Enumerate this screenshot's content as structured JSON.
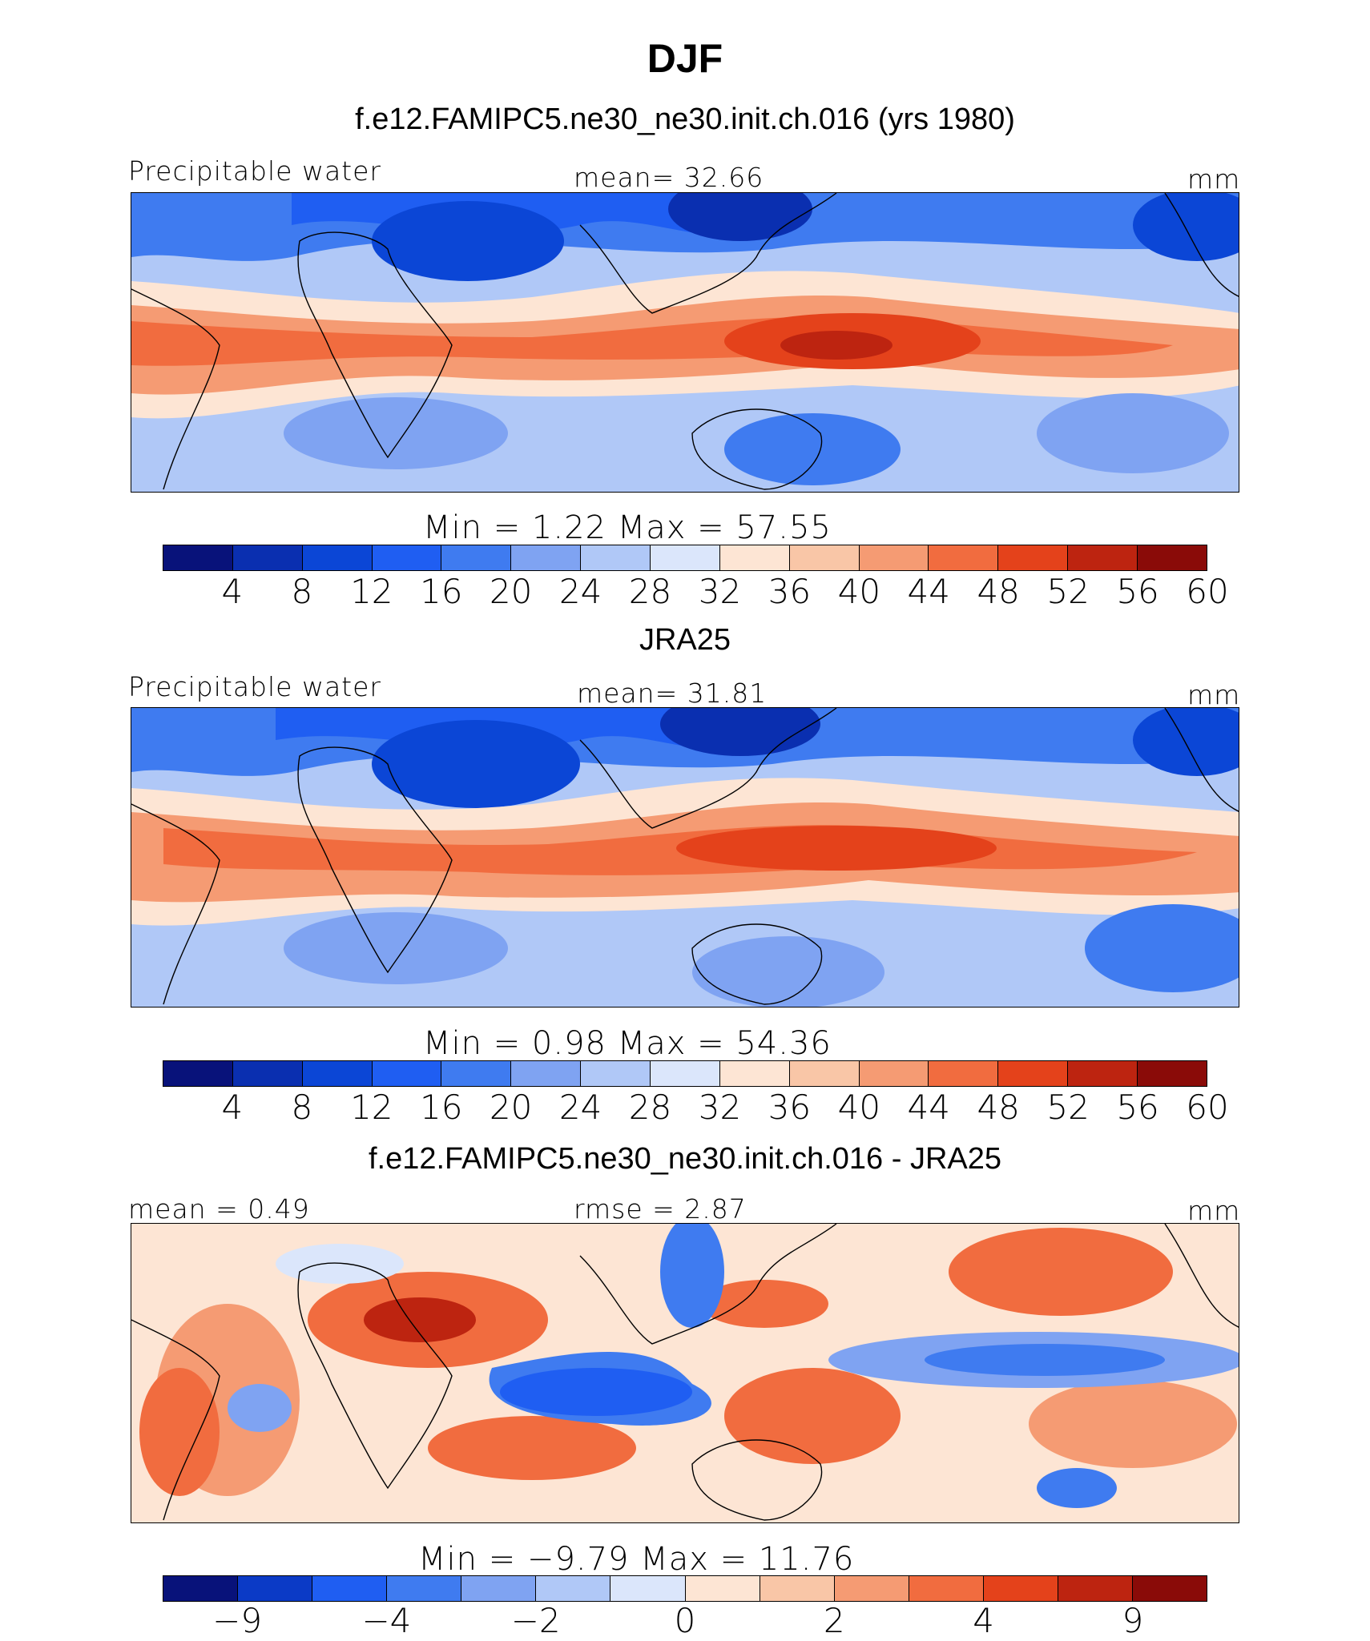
{
  "page_title": "DJF",
  "colors": {
    "seq": [
      "#08127a",
      "#0a2fb0",
      "#0b46d6",
      "#1f5ef2",
      "#3f7bf0",
      "#7fa3f2",
      "#b0c8f7",
      "#dbe6fb",
      "#fde5d4",
      "#f9c6a7",
      "#f59b73",
      "#f16c3f",
      "#e4421b",
      "#bd2410",
      "#8a0b08"
    ],
    "diff": [
      "#08127a",
      "#0b3ac6",
      "#1f5ef2",
      "#3f7bf0",
      "#7fa3f2",
      "#b0c8f7",
      "#dbe6fb",
      "#fde5d4",
      "#f9c6a7",
      "#f59b73",
      "#f16c3f",
      "#e4421b",
      "#bd2410",
      "#8a0b08"
    ]
  },
  "chart_data": [
    {
      "type": "heatmap",
      "subtitle": "f.e12.FAMIPC5.ne30_ne30.init.ch.016 (yrs 1980)",
      "left_label": "Precipitable water",
      "center_label": "mean=   32.66",
      "units": "mm",
      "min_max_label": "Min  =     1.22  Max  =    57.55",
      "stats": {
        "mean": 32.66,
        "min": 1.22,
        "max": 57.55
      },
      "colorbar_levels": [
        4,
        8,
        12,
        16,
        20,
        24,
        28,
        32,
        36,
        40,
        44,
        48,
        52,
        56,
        60
      ]
    },
    {
      "type": "heatmap",
      "subtitle": "JRA25",
      "left_label": "Precipitable water",
      "center_label": "mean=   31.81",
      "units": "mm",
      "min_max_label": "Min  =     0.98  Max  =    54.36",
      "stats": {
        "mean": 31.81,
        "min": 0.98,
        "max": 54.36
      },
      "colorbar_levels": [
        4,
        8,
        12,
        16,
        20,
        24,
        28,
        32,
        36,
        40,
        44,
        48,
        52,
        56,
        60
      ]
    },
    {
      "type": "heatmap",
      "subtitle": "f.e12.FAMIPC5.ne30_ne30.init.ch.016 - JRA25",
      "left_label": "mean  =    0.49",
      "center_label": "rmse  =    2.87",
      "units": "mm",
      "min_max_label": "Min  =   −9.79  Max  =    11.76",
      "stats": {
        "mean": 0.49,
        "rmse": 2.87,
        "min": -9.79,
        "max": 11.76
      },
      "colorbar_levels": [
        "−9",
        "−4",
        "−2",
        "0",
        "2",
        "4",
        "9"
      ]
    }
  ]
}
